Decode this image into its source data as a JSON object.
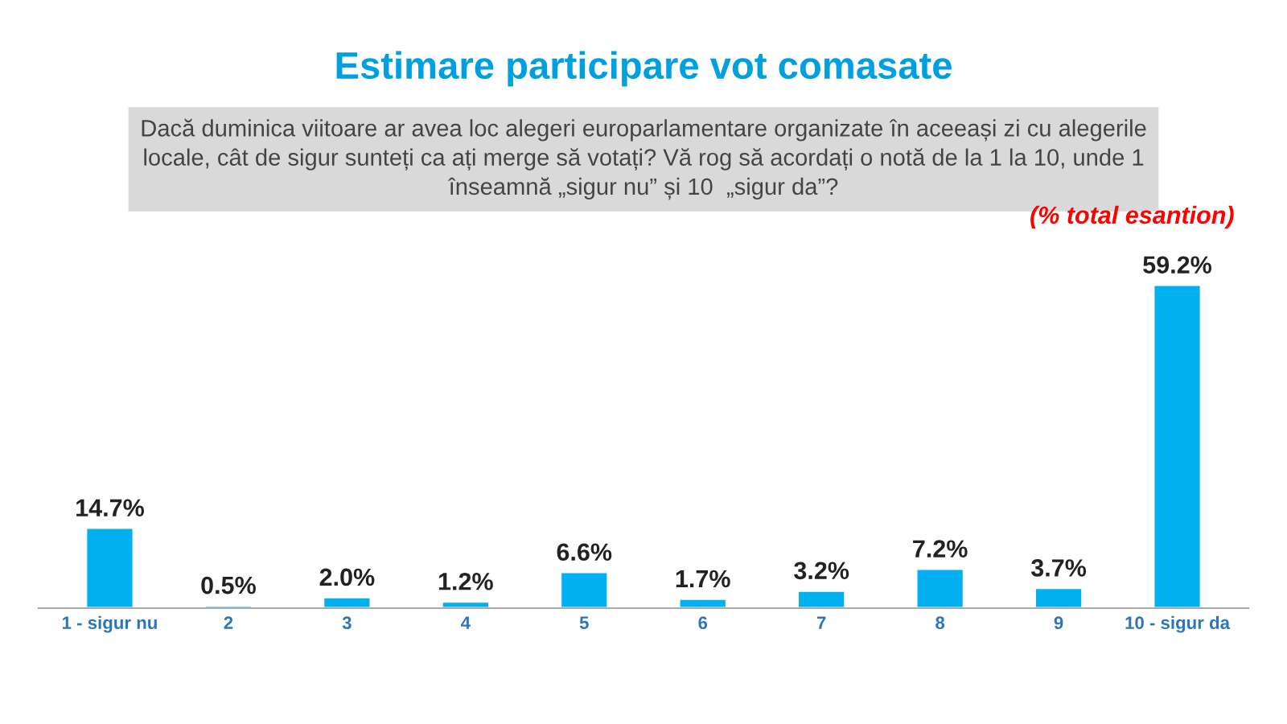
{
  "chart_data": {
    "type": "bar",
    "title": "Estimare participare vot comasate",
    "subtitle": "Dacă duminica viitoare ar avea loc alegeri europarlamentare organizate în aceeași zi cu alegerile\nlocale, cât de sigur sunteți ca ați merge să votați? Vă rog să acordați o notă de la 1 la 10, unde 1\nînseamnă „sigur nu” și 10  „sigur da”?",
    "annotations": [
      "(% total esantion)"
    ],
    "categories": [
      "1 - sigur nu",
      "2",
      "3",
      "4",
      "5",
      "6",
      "7",
      "8",
      "9",
      "10 - sigur da"
    ],
    "values": [
      14.7,
      0.5,
      2.0,
      1.2,
      6.6,
      1.7,
      3.2,
      7.2,
      3.7,
      59.2
    ],
    "value_labels": [
      "14.7%",
      "0.5%",
      "2.0%",
      "1.2%",
      "6.6%",
      "1.7%",
      "3.2%",
      "7.2%",
      "3.7%",
      "59.2%"
    ],
    "color": "#00b0f0",
    "grid": false,
    "legend": false
  }
}
